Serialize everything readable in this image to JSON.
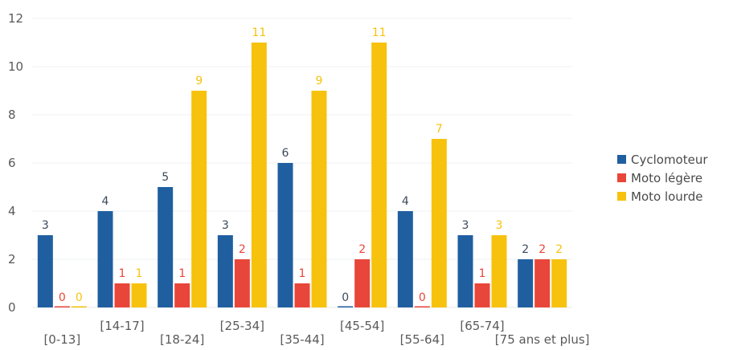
{
  "chart_data": {
    "type": "bar",
    "categories": [
      "[0-13]",
      "[14-17]",
      "[18-24]",
      "[25-34]",
      "[35-44]",
      "[45-54]",
      "[55-64]",
      "[65-74]",
      "[75 ans et plus]"
    ],
    "series": [
      {
        "name": "Cyclomoteur",
        "color": "#1f5fa0",
        "values": [
          3,
          4,
          5,
          3,
          6,
          0,
          4,
          3,
          2
        ]
      },
      {
        "name": "Moto légère",
        "color": "#e8463a",
        "values": [
          0,
          1,
          1,
          2,
          1,
          2,
          0,
          1,
          2
        ]
      },
      {
        "name": "Moto lourde",
        "color": "#f7c20e",
        "values": [
          0,
          1,
          9,
          11,
          9,
          11,
          7,
          3,
          2
        ]
      }
    ],
    "ylim": [
      0,
      12
    ],
    "yticks": [
      0,
      2,
      4,
      6,
      8,
      10,
      12
    ],
    "xlabel": "",
    "ylabel": "",
    "grid": true,
    "legend_position": "right"
  }
}
